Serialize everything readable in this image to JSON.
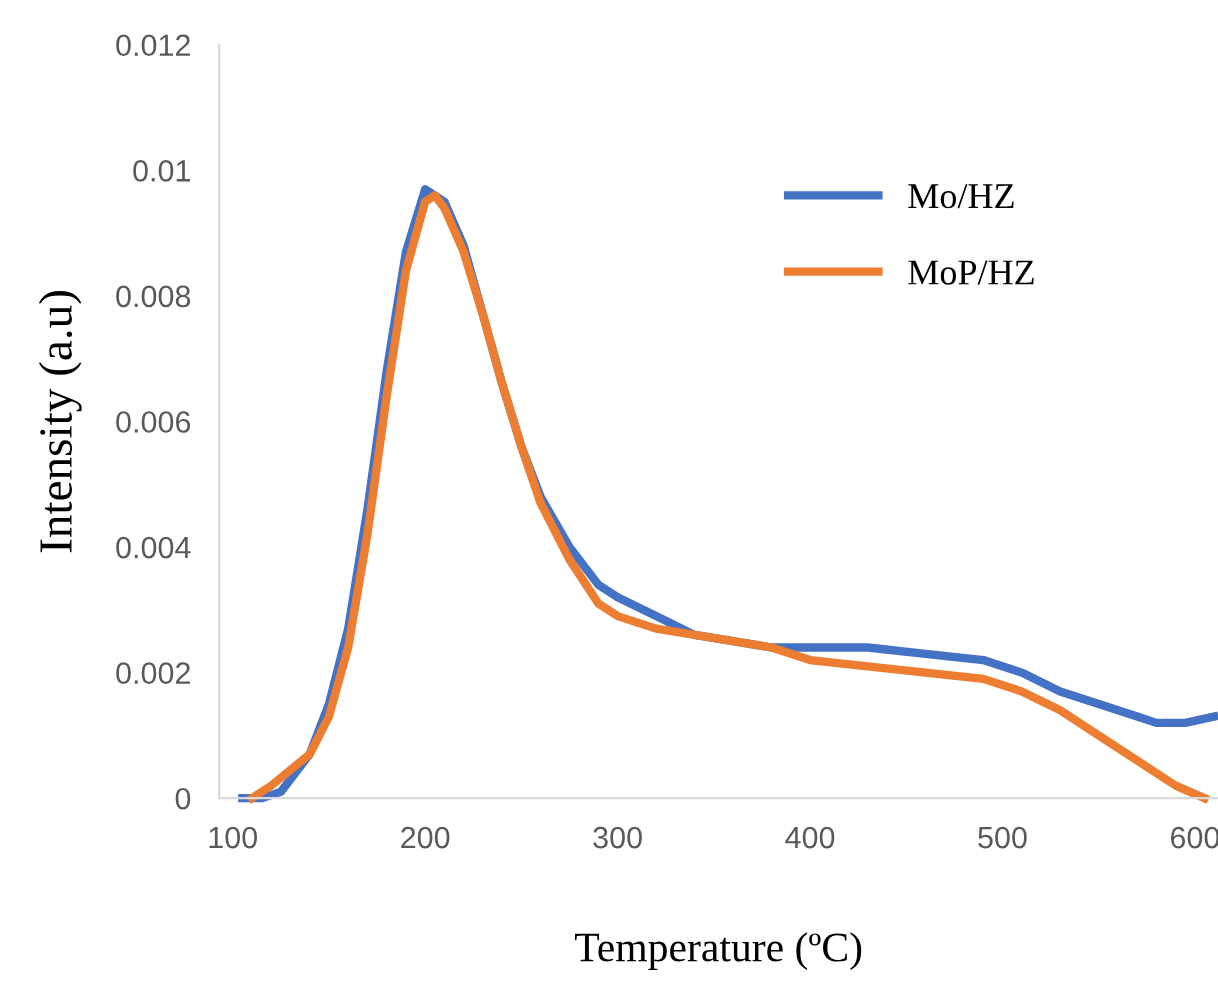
{
  "chart_data": {
    "type": "line",
    "xlabel": "Temperature (ºC)",
    "ylabel": "Intensity (a.u)",
    "xlim": [
      93,
      612
    ],
    "xticks": [
      100,
      200,
      300,
      400,
      500,
      600
    ],
    "ylim": [
      0,
      0.012
    ],
    "yticks": [
      0,
      0.002,
      0.004,
      0.006,
      0.008,
      0.01,
      0.012
    ],
    "grid": false,
    "legend": "top right",
    "marker": "none",
    "line_style": "solid",
    "series": [
      {
        "name": "Mo/HZ",
        "color": "#4472c4",
        "x": [
          105,
          115,
          125,
          140,
          150,
          160,
          170,
          180,
          190,
          200,
          210,
          220,
          230,
          240,
          250,
          260,
          275,
          290,
          300,
          320,
          340,
          360,
          380,
          400,
          430,
          460,
          490,
          510,
          530,
          550,
          570,
          580,
          595,
          610
        ],
        "values": [
          0,
          0,
          0.0001,
          0.0007,
          0.0015,
          0.0027,
          0.0046,
          0.0068,
          0.0087,
          0.0097,
          0.0095,
          0.0088,
          0.0077,
          0.0066,
          0.0056,
          0.0048,
          0.004,
          0.0034,
          0.0032,
          0.0029,
          0.0026,
          0.0025,
          0.0024,
          0.0024,
          0.0024,
          0.0023,
          0.0022,
          0.002,
          0.0017,
          0.0015,
          0.0013,
          0.0012,
          0.0012,
          0.0013
        ]
      },
      {
        "name": "MoP/HZ",
        "color": "#ed7d31",
        "x": [
          110,
          120,
          140,
          150,
          160,
          170,
          180,
          190,
          200,
          205,
          210,
          220,
          230,
          240,
          250,
          260,
          275,
          290,
          300,
          320,
          340,
          360,
          380,
          400,
          430,
          460,
          490,
          510,
          530,
          550,
          570,
          590,
          605
        ],
        "values": [
          0,
          0.0002,
          0.0007,
          0.0013,
          0.0024,
          0.0042,
          0.0064,
          0.0084,
          0.0095,
          0.0096,
          0.0094,
          0.0087,
          0.0077,
          0.0066,
          0.0056,
          0.0047,
          0.0038,
          0.0031,
          0.0029,
          0.0027,
          0.0026,
          0.0025,
          0.0024,
          0.0022,
          0.0021,
          0.002,
          0.0019,
          0.0017,
          0.0014,
          0.001,
          0.0006,
          0.0002,
          0
        ]
      }
    ]
  }
}
